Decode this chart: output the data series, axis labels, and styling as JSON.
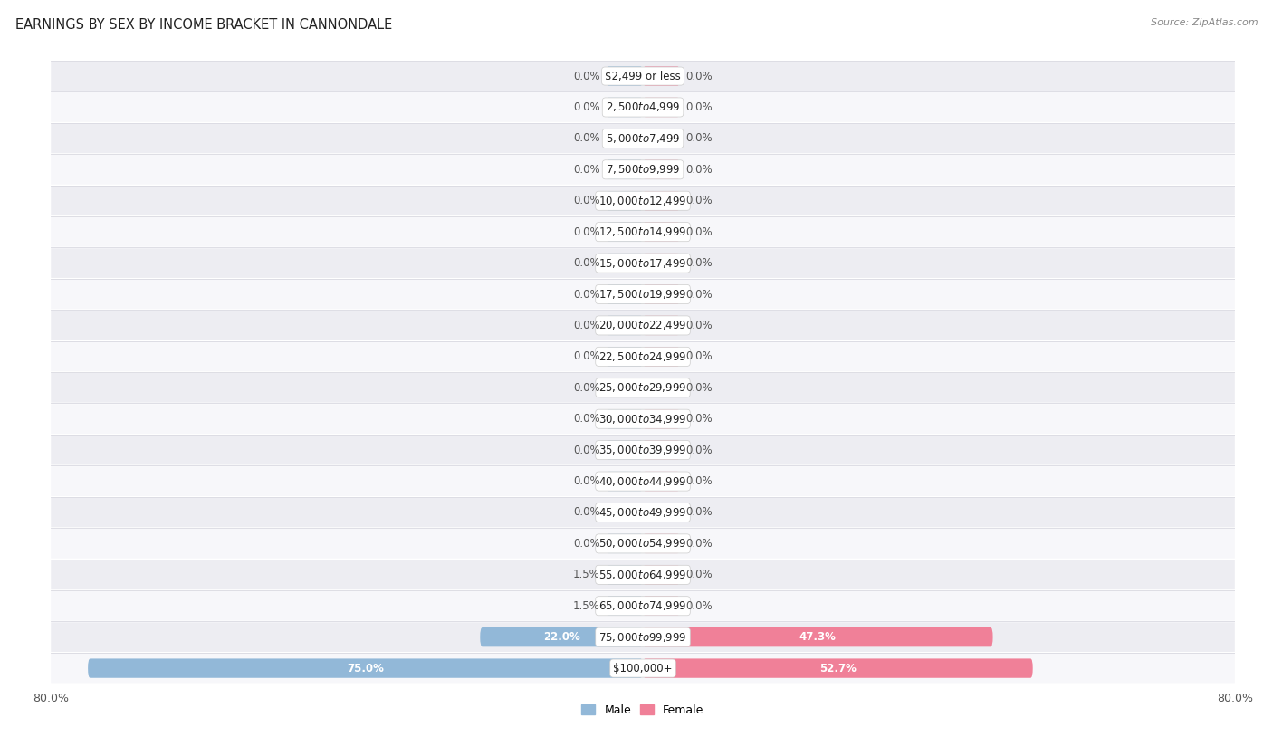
{
  "title": "EARNINGS BY SEX BY INCOME BRACKET IN CANNONDALE",
  "source": "Source: ZipAtlas.com",
  "categories": [
    "$2,499 or less",
    "$2,500 to $4,999",
    "$5,000 to $7,499",
    "$7,500 to $9,999",
    "$10,000 to $12,499",
    "$12,500 to $14,999",
    "$15,000 to $17,499",
    "$17,500 to $19,999",
    "$20,000 to $22,499",
    "$22,500 to $24,999",
    "$25,000 to $29,999",
    "$30,000 to $34,999",
    "$35,000 to $39,999",
    "$40,000 to $44,999",
    "$45,000 to $49,999",
    "$50,000 to $54,999",
    "$55,000 to $64,999",
    "$65,000 to $74,999",
    "$75,000 to $99,999",
    "$100,000+"
  ],
  "male_values": [
    0.0,
    0.0,
    0.0,
    0.0,
    0.0,
    0.0,
    0.0,
    0.0,
    0.0,
    0.0,
    0.0,
    0.0,
    0.0,
    0.0,
    0.0,
    0.0,
    1.5,
    1.5,
    22.0,
    75.0
  ],
  "female_values": [
    0.0,
    0.0,
    0.0,
    0.0,
    0.0,
    0.0,
    0.0,
    0.0,
    0.0,
    0.0,
    0.0,
    0.0,
    0.0,
    0.0,
    0.0,
    0.0,
    0.0,
    0.0,
    47.3,
    52.7
  ],
  "male_color": "#92b8d8",
  "female_color": "#f08098",
  "male_label": "Male",
  "female_label": "Female",
  "xlim": 80.0,
  "min_bar_width": 5.0,
  "bg_color": "#ffffff",
  "row_bg_alt": "#ededf2",
  "row_bg_main": "#f7f7fa",
  "separator_color": "#d8d8e0",
  "title_fontsize": 10.5,
  "pct_fontsize": 8.5,
  "cat_fontsize": 8.5,
  "legend_fontsize": 9,
  "axis_tick_fontsize": 9
}
